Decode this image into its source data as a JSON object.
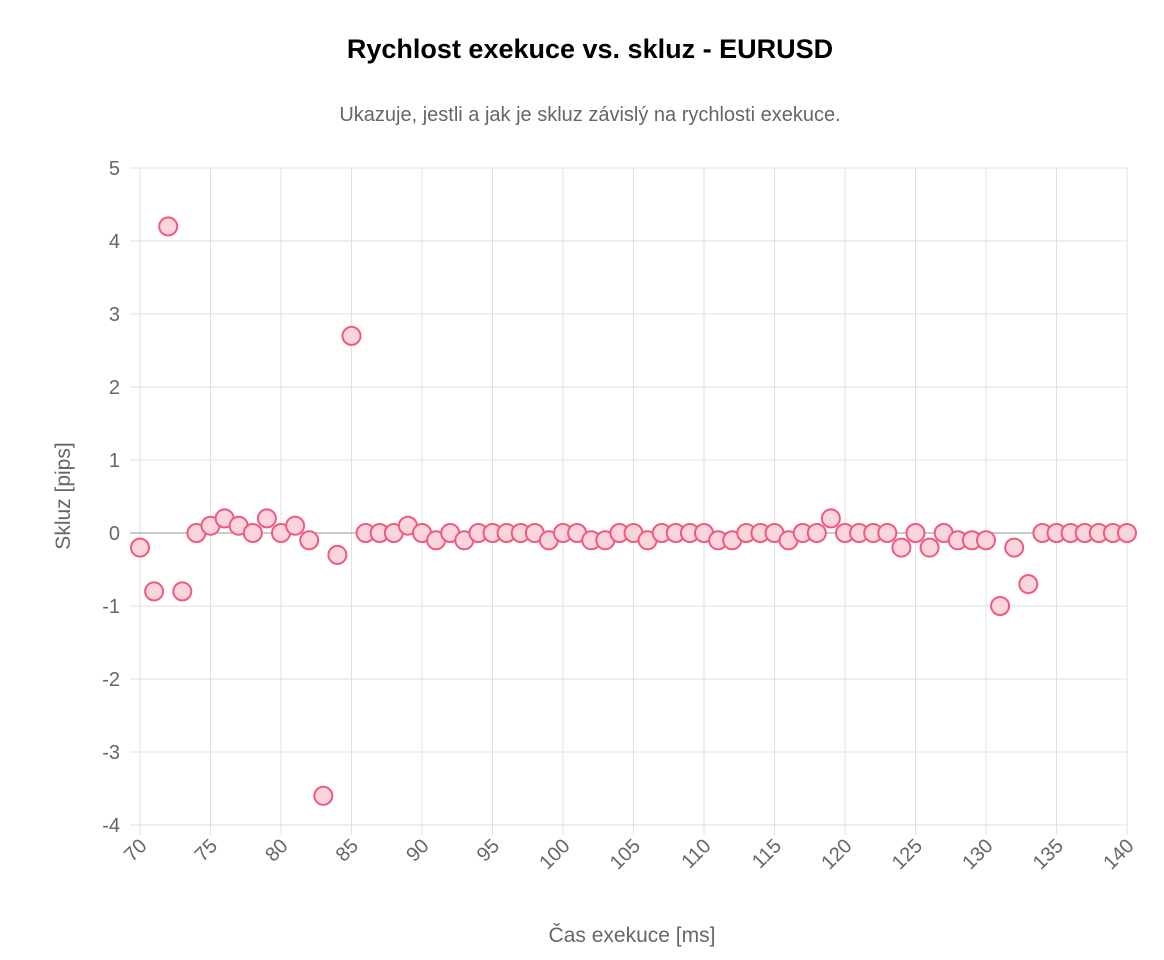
{
  "chart_data": {
    "type": "scatter",
    "title": "Rychlost exekuce vs. skluz - EURUSD",
    "subtitle": "Ukazuje, jestli a jak je skluz závislý na rychlosti exekuce.",
    "xlabel": "Čas exekuce [ms]",
    "ylabel": "Skluz [pips]",
    "xlim": [
      70,
      140
    ],
    "ylim": [
      -4,
      5
    ],
    "x_ticks": [
      70,
      75,
      80,
      85,
      90,
      95,
      100,
      105,
      110,
      115,
      120,
      125,
      130,
      135,
      140
    ],
    "y_ticks": [
      5,
      4,
      3,
      2,
      1,
      0,
      -1,
      -2,
      -3,
      -4
    ],
    "grid": true,
    "legend": "none",
    "colors": {
      "point_fill": "#fbd5dd",
      "point_stroke": "#f25a7c",
      "grid": "#e0e0e0"
    },
    "series": [
      {
        "points": [
          {
            "x": 70,
            "y": -0.2
          },
          {
            "x": 71,
            "y": -0.8
          },
          {
            "x": 72,
            "y": 4.2
          },
          {
            "x": 73,
            "y": -0.8
          },
          {
            "x": 74,
            "y": 0
          },
          {
            "x": 75,
            "y": 0.1
          },
          {
            "x": 76,
            "y": 0.2
          },
          {
            "x": 77,
            "y": 0.1
          },
          {
            "x": 78,
            "y": 0
          },
          {
            "x": 79,
            "y": 0.2
          },
          {
            "x": 80,
            "y": 0
          },
          {
            "x": 81,
            "y": 0.1
          },
          {
            "x": 82,
            "y": -0.1
          },
          {
            "x": 83,
            "y": -3.6
          },
          {
            "x": 84,
            "y": -0.3
          },
          {
            "x": 85,
            "y": 2.7
          },
          {
            "x": 86,
            "y": 0
          },
          {
            "x": 87,
            "y": 0
          },
          {
            "x": 88,
            "y": 0
          },
          {
            "x": 89,
            "y": 0.1
          },
          {
            "x": 90,
            "y": 0
          },
          {
            "x": 91,
            "y": -0.1
          },
          {
            "x": 92,
            "y": 0
          },
          {
            "x": 93,
            "y": -0.1
          },
          {
            "x": 94,
            "y": 0
          },
          {
            "x": 95,
            "y": 0
          },
          {
            "x": 96,
            "y": 0
          },
          {
            "x": 97,
            "y": 0
          },
          {
            "x": 98,
            "y": 0
          },
          {
            "x": 99,
            "y": -0.1
          },
          {
            "x": 100,
            "y": 0
          },
          {
            "x": 101,
            "y": 0
          },
          {
            "x": 102,
            "y": -0.1
          },
          {
            "x": 103,
            "y": -0.1
          },
          {
            "x": 104,
            "y": 0
          },
          {
            "x": 105,
            "y": 0
          },
          {
            "x": 106,
            "y": -0.1
          },
          {
            "x": 107,
            "y": 0
          },
          {
            "x": 108,
            "y": 0
          },
          {
            "x": 109,
            "y": 0
          },
          {
            "x": 110,
            "y": 0
          },
          {
            "x": 111,
            "y": -0.1
          },
          {
            "x": 112,
            "y": -0.1
          },
          {
            "x": 113,
            "y": 0
          },
          {
            "x": 114,
            "y": 0
          },
          {
            "x": 115,
            "y": 0
          },
          {
            "x": 116,
            "y": -0.1
          },
          {
            "x": 117,
            "y": 0
          },
          {
            "x": 118,
            "y": 0
          },
          {
            "x": 119,
            "y": 0.2
          },
          {
            "x": 120,
            "y": 0
          },
          {
            "x": 121,
            "y": 0
          },
          {
            "x": 122,
            "y": 0
          },
          {
            "x": 123,
            "y": 0
          },
          {
            "x": 124,
            "y": -0.2
          },
          {
            "x": 125,
            "y": 0
          },
          {
            "x": 126,
            "y": -0.2
          },
          {
            "x": 127,
            "y": 0
          },
          {
            "x": 128,
            "y": -0.1
          },
          {
            "x": 129,
            "y": -0.1
          },
          {
            "x": 130,
            "y": -0.1
          },
          {
            "x": 131,
            "y": -1.0
          },
          {
            "x": 132,
            "y": -0.2
          },
          {
            "x": 133,
            "y": -0.7
          },
          {
            "x": 134,
            "y": 0
          },
          {
            "x": 135,
            "y": 0
          },
          {
            "x": 136,
            "y": 0
          },
          {
            "x": 137,
            "y": 0
          },
          {
            "x": 138,
            "y": 0
          },
          {
            "x": 139,
            "y": 0
          },
          {
            "x": 140,
            "y": 0
          }
        ]
      }
    ]
  }
}
